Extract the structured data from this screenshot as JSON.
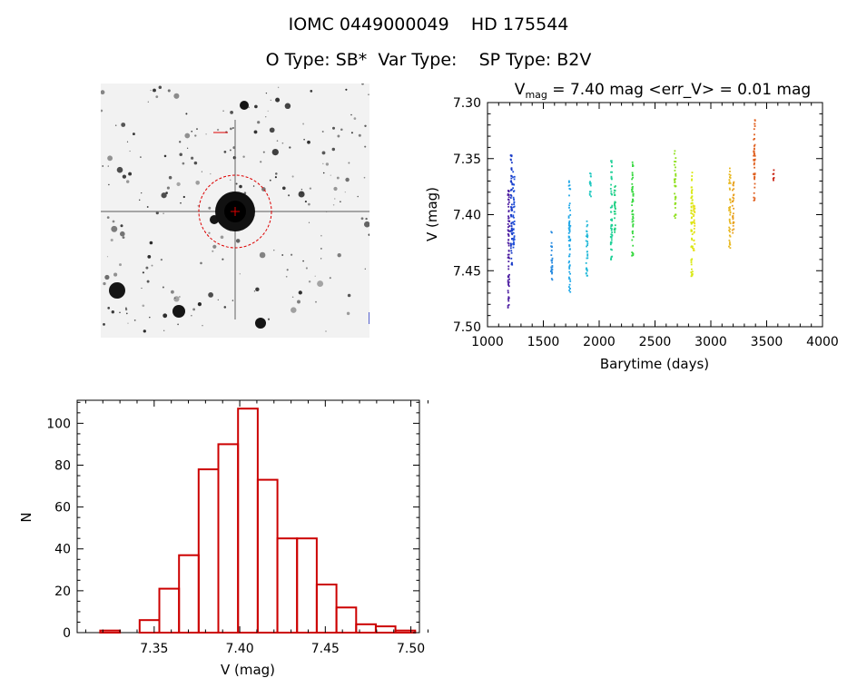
{
  "header": {
    "line1": "IOMC 0449000049    HD 175544",
    "line2": "O Type: SB*  Var Type:    SP Type: B2V"
  },
  "image": {
    "marker_color": "#dd0000",
    "background": "#f2f2f2"
  },
  "chart_data": [
    {
      "type": "scatter",
      "title_parts": [
        "V",
        "mag",
        " = 7.40 mag <err_V> = 0.01 mag"
      ],
      "xlabel": "Barytime (days)",
      "ylabel": "V (mag)",
      "xlim": [
        1000,
        4000
      ],
      "ylim": [
        7.5,
        7.3
      ],
      "y_inverted": true,
      "xticks": [
        "1000",
        "1500",
        "2000",
        "2500",
        "3000",
        "3500",
        "4000"
      ],
      "yticks": [
        "7.30",
        "7.35",
        "7.40",
        "7.45",
        "7.50"
      ],
      "xtick_values": [
        1000,
        1500,
        2000,
        2500,
        3000,
        3500,
        4000
      ],
      "ytick_values": [
        7.3,
        7.35,
        7.4,
        7.45,
        7.5
      ],
      "groups": [
        {
          "x": 1190,
          "ymin": 7.375,
          "ymax": 7.485,
          "color": "#4a1aa0"
        },
        {
          "x": 1215,
          "ymin": 7.345,
          "ymax": 7.445,
          "color": "#1a3cc8"
        },
        {
          "x": 1235,
          "ymin": 7.36,
          "ymax": 7.43,
          "color": "#2050d8"
        },
        {
          "x": 1575,
          "ymin": 7.415,
          "ymax": 7.46,
          "color": "#2a8ce0"
        },
        {
          "x": 1735,
          "ymin": 7.37,
          "ymax": 7.47,
          "color": "#20a8e8"
        },
        {
          "x": 1890,
          "ymin": 7.405,
          "ymax": 7.455,
          "color": "#20b8d8"
        },
        {
          "x": 1920,
          "ymin": 7.358,
          "ymax": 7.385,
          "color": "#20c8c0"
        },
        {
          "x": 2110,
          "ymin": 7.35,
          "ymax": 7.44,
          "color": "#20d098"
        },
        {
          "x": 2140,
          "ymin": 7.37,
          "ymax": 7.42,
          "color": "#20d080"
        },
        {
          "x": 2300,
          "ymin": 7.353,
          "ymax": 7.44,
          "color": "#38d840"
        },
        {
          "x": 2680,
          "ymin": 7.343,
          "ymax": 7.405,
          "color": "#90e020"
        },
        {
          "x": 2830,
          "ymin": 7.36,
          "ymax": 7.455,
          "color": "#d8e810"
        },
        {
          "x": 2850,
          "ymin": 7.39,
          "ymax": 7.44,
          "color": "#e8e020"
        },
        {
          "x": 3170,
          "ymin": 7.358,
          "ymax": 7.43,
          "color": "#e8b820"
        },
        {
          "x": 3200,
          "ymin": 7.37,
          "ymax": 7.42,
          "color": "#e8a020"
        },
        {
          "x": 3390,
          "ymin": 7.315,
          "ymax": 7.388,
          "color": "#e06020"
        },
        {
          "x": 3560,
          "ymin": 7.36,
          "ymax": 7.37,
          "color": "#c82010"
        }
      ]
    },
    {
      "type": "bar",
      "xlabel": "V (mag)",
      "ylabel": "N",
      "xlim": [
        7.305,
        7.505
      ],
      "ylim": [
        0,
        111
      ],
      "xticks": [
        "7.35",
        "7.40",
        "7.45",
        "7.50"
      ],
      "yticks": [
        "0",
        "20",
        "40",
        "60",
        "80",
        "100"
      ],
      "xtick_values": [
        7.35,
        7.4,
        7.45,
        7.5
      ],
      "ytick_values": [
        0,
        20,
        40,
        60,
        80,
        100
      ],
      "bin_width": 0.0115,
      "bar_color": "#cc0000",
      "bins": [
        {
          "left": 7.3185,
          "value": 1
        },
        {
          "left": 7.3415,
          "value": 6
        },
        {
          "left": 7.353,
          "value": 21
        },
        {
          "left": 7.3645,
          "value": 37
        },
        {
          "left": 7.376,
          "value": 78
        },
        {
          "left": 7.3875,
          "value": 90
        },
        {
          "left": 7.399,
          "value": 107
        },
        {
          "left": 7.4105,
          "value": 73
        },
        {
          "left": 7.422,
          "value": 45
        },
        {
          "left": 7.4335,
          "value": 45
        },
        {
          "left": 7.445,
          "value": 23
        },
        {
          "left": 7.4565,
          "value": 12
        },
        {
          "left": 7.468,
          "value": 4
        },
        {
          "left": 7.4795,
          "value": 3
        },
        {
          "left": 7.491,
          "value": 1
        }
      ]
    }
  ]
}
